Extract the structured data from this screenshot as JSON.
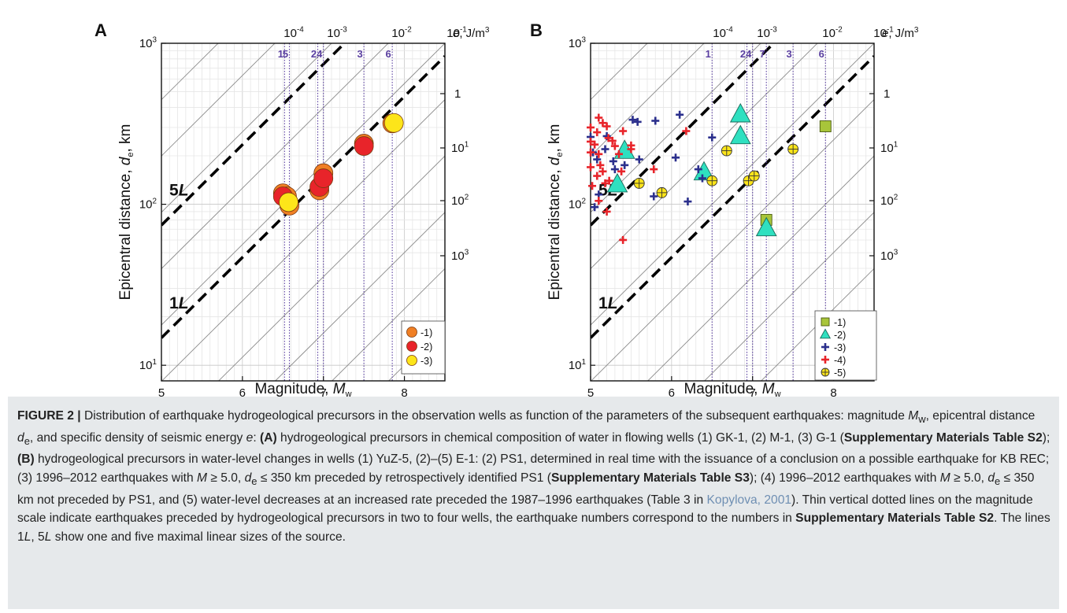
{
  "figure": {
    "label": "FIGURE 2",
    "separator": " | ",
    "caption_html": "Distribution of earthquake hydrogeological precursors in the observation wells as function of the parameters of the subsequent earthquakes: magnitude <i>M</i><sub>w</sub>, epicentral distance <i>d</i><sub>e</sub>, and specific density of seismic energy <i>e</i>: <b>(A)</b> hydrogeological precursors in chemical composition of water in flowing wells (1) GK-1, (2) M-1, (3) G-1 (<b>Supplementary Materials Table S2</b>); <b>(B)</b> hydrogeological precursors in water-level changes in wells (1) YuZ-5, (2)–(5) E-1: (2) PS1, determined in real time with the issuance of a conclusion on a possible earthquake for KB REC; (3) 1996–2012 earthquakes with <i>M</i> ≥ 5.0, <i>d</i><sub>e</sub> ≤ 350 km preceded by retrospectively identified PS1 (<b>Supplementary Materials Table S3</b>); (4) 1996–2012 earthquakes with <i>M</i> ≥ 5.0, <i>d</i><sub>e</sub> ≤ 350 km not preceded by PS1, and (5) water-level decreases at an increased rate preceded the 1987–1996 earthquakes (Table 3 in <span class=\"ref\">Kopylova, 2001</span>). Thin vertical dotted lines on the magnitude scale indicate earthquakes preceded by hydrogeological precursors in two to four wells, the earthquake numbers correspond to the numbers in <b>Supplementary Materials Table S2</b>. The lines 1<i>L</i>, 5<i>L</i> show one and five maximal linear sizes of the source."
  },
  "chart_data": [
    {
      "panel": "A",
      "type": "scatter",
      "x_label": "Magnitude, ",
      "x_label_var": "M",
      "x_label_sub": "w",
      "y_label": "Epicentral distance, ",
      "y_label_var": "d",
      "y_label_sub": "e",
      "y_label_unit": ", km",
      "xlim": [
        5,
        8.5
      ],
      "ylim": [
        8,
        1000
      ],
      "y_scale": "log",
      "x_ticks": [
        "5",
        "6",
        "7",
        "8"
      ],
      "y_ticks": [
        {
          "base": "10",
          "exp": "1",
          "value": 10
        },
        {
          "base": "10",
          "exp": "2",
          "value": 100
        },
        {
          "base": "10",
          "exp": "3",
          "value": 1000
        }
      ],
      "top_axis_label": "e, J/m",
      "top_axis_exp": "3",
      "top_ticks": [
        {
          "base": "10",
          "exp": "-4"
        },
        {
          "base": "10",
          "exp": "-3"
        },
        {
          "base": "10",
          "exp": "-2"
        },
        {
          "base": "10",
          "exp": "-1"
        }
      ],
      "right_ticks": [
        {
          "text": "1"
        },
        {
          "base": "10",
          "exp": "1"
        },
        {
          "base": "10",
          "exp": "2"
        },
        {
          "base": "10",
          "exp": "3"
        }
      ],
      "vlines": [
        {
          "label": "1",
          "x": 6.52
        },
        {
          "label": "5",
          "x": 6.58
        },
        {
          "label": "2",
          "x": 6.93
        },
        {
          "label": "4",
          "x": 7.0
        },
        {
          "label": "3",
          "x": 7.5
        },
        {
          "label": "6",
          "x": 7.85
        }
      ],
      "ref_lines": [
        {
          "label": "1L",
          "intercept_log": -1.33
        },
        {
          "label": "5L",
          "intercept_log": -0.63
        }
      ],
      "series": [
        {
          "name": "-1)",
          "marker": "circle",
          "color": "#f07f24",
          "points": [
            [
              6.5,
              117
            ],
            [
              6.55,
              112
            ],
            [
              6.58,
              98
            ],
            [
              6.95,
              122
            ],
            [
              7.0,
              156
            ],
            [
              7.5,
              238
            ],
            [
              7.85,
              318
            ]
          ]
        },
        {
          "name": "-2)",
          "marker": "circle",
          "color": "#e8242a",
          "points": [
            [
              6.5,
              112
            ],
            [
              6.95,
              128
            ],
            [
              7.0,
              145
            ],
            [
              7.5,
              230
            ]
          ]
        },
        {
          "name": "-3)",
          "marker": "circle",
          "color": "#fde51a",
          "points": [
            [
              6.57,
              103
            ],
            [
              7.87,
              320
            ]
          ]
        }
      ]
    },
    {
      "panel": "B",
      "type": "scatter",
      "x_label": "Magnitude, ",
      "x_label_var": "M",
      "x_label_sub": "w",
      "y_label": "Epicentral distance, ",
      "y_label_var": "d",
      "y_label_sub": "e",
      "y_label_unit": ", km",
      "xlim": [
        5,
        8.5
      ],
      "ylim": [
        8,
        1000
      ],
      "y_scale": "log",
      "x_ticks": [
        "5",
        "6",
        "7",
        "8"
      ],
      "y_ticks": [
        {
          "base": "10",
          "exp": "1",
          "value": 10
        },
        {
          "base": "10",
          "exp": "2",
          "value": 100
        },
        {
          "base": "10",
          "exp": "3",
          "value": 1000
        }
      ],
      "top_axis_label": "e, J/m",
      "top_axis_exp": "3",
      "top_ticks": [
        {
          "base": "10",
          "exp": "-4"
        },
        {
          "base": "10",
          "exp": "-3"
        },
        {
          "base": "10",
          "exp": "-2"
        },
        {
          "base": "10",
          "exp": "-1"
        }
      ],
      "right_ticks": [
        {
          "text": "1"
        },
        {
          "base": "10",
          "exp": "1"
        },
        {
          "base": "10",
          "exp": "2"
        },
        {
          "base": "10",
          "exp": "3"
        }
      ],
      "vlines": [
        {
          "label": "1",
          "x": 6.5
        },
        {
          "label": "2",
          "x": 6.93
        },
        {
          "label": "4",
          "x": 7.0
        },
        {
          "label": "7",
          "x": 7.17
        },
        {
          "label": "3",
          "x": 7.5
        },
        {
          "label": "6",
          "x": 7.9
        }
      ],
      "ref_lines": [
        {
          "label": "1L",
          "intercept_log": -1.33
        },
        {
          "label": "5L",
          "intercept_log": -0.63
        }
      ],
      "series": [
        {
          "name": "-1)",
          "marker": "square",
          "color": "#a8c53a",
          "points": [
            [
              7.9,
              305
            ],
            [
              7.17,
              80
            ]
          ]
        },
        {
          "name": "-2)",
          "marker": "triangle",
          "color": "#2fe0c0",
          "points": [
            [
              5.33,
              133
            ],
            [
              5.42,
              215
            ],
            [
              6.4,
              158
            ],
            [
              6.85,
              362
            ],
            [
              6.85,
              265
            ],
            [
              7.17,
              71
            ]
          ]
        },
        {
          "name": "-3)",
          "marker": "plus",
          "color": "#2b2f8c",
          "points": [
            [
              5.0,
              262
            ],
            [
              5.03,
              210
            ],
            [
              5.05,
              96
            ],
            [
              5.08,
              190
            ],
            [
              5.1,
              115
            ],
            [
              5.18,
              220
            ],
            [
              5.2,
              265
            ],
            [
              5.28,
              185
            ],
            [
              5.3,
              165
            ],
            [
              5.42,
              175
            ],
            [
              5.52,
              335
            ],
            [
              5.58,
              325
            ],
            [
              5.8,
              330
            ],
            [
              5.6,
              190
            ],
            [
              6.1,
              360
            ],
            [
              6.05,
              195
            ],
            [
              5.78,
              112
            ],
            [
              6.2,
              104
            ],
            [
              6.33,
              165
            ],
            [
              6.38,
              145
            ],
            [
              6.5,
              260
            ]
          ]
        },
        {
          "name": "-4)",
          "marker": "plus",
          "color": "#e8242a",
          "points": [
            [
              5.0,
              300
            ],
            [
              5.0,
              245
            ],
            [
              5.0,
              210
            ],
            [
              5.0,
              170
            ],
            [
              5.02,
              130
            ],
            [
              5.05,
              235
            ],
            [
              5.08,
              280
            ],
            [
              5.08,
              150
            ],
            [
              5.1,
              345
            ],
            [
              5.1,
              205
            ],
            [
              5.1,
              105
            ],
            [
              5.12,
              175
            ],
            [
              5.15,
              320
            ],
            [
              5.15,
              160
            ],
            [
              5.18,
              135
            ],
            [
              5.2,
              305
            ],
            [
              5.2,
              90
            ],
            [
              5.22,
              258
            ],
            [
              5.23,
              140
            ],
            [
              5.27,
              248
            ],
            [
              5.3,
              230
            ],
            [
              5.35,
              205
            ],
            [
              5.38,
              160
            ],
            [
              5.4,
              285
            ],
            [
              5.5,
              232
            ],
            [
              5.5,
              220
            ],
            [
              5.78,
              165
            ],
            [
              5.4,
              60
            ],
            [
              6.18,
              285
            ]
          ]
        },
        {
          "name": "-5)",
          "marker": "circle-plus",
          "color": "#fde51a",
          "points": [
            [
              5.6,
              135
            ],
            [
              5.88,
              118
            ],
            [
              6.5,
              140
            ],
            [
              6.68,
              215
            ],
            [
              6.95,
              140
            ],
            [
              7.02,
              150
            ],
            [
              7.5,
              220
            ]
          ]
        }
      ]
    }
  ]
}
